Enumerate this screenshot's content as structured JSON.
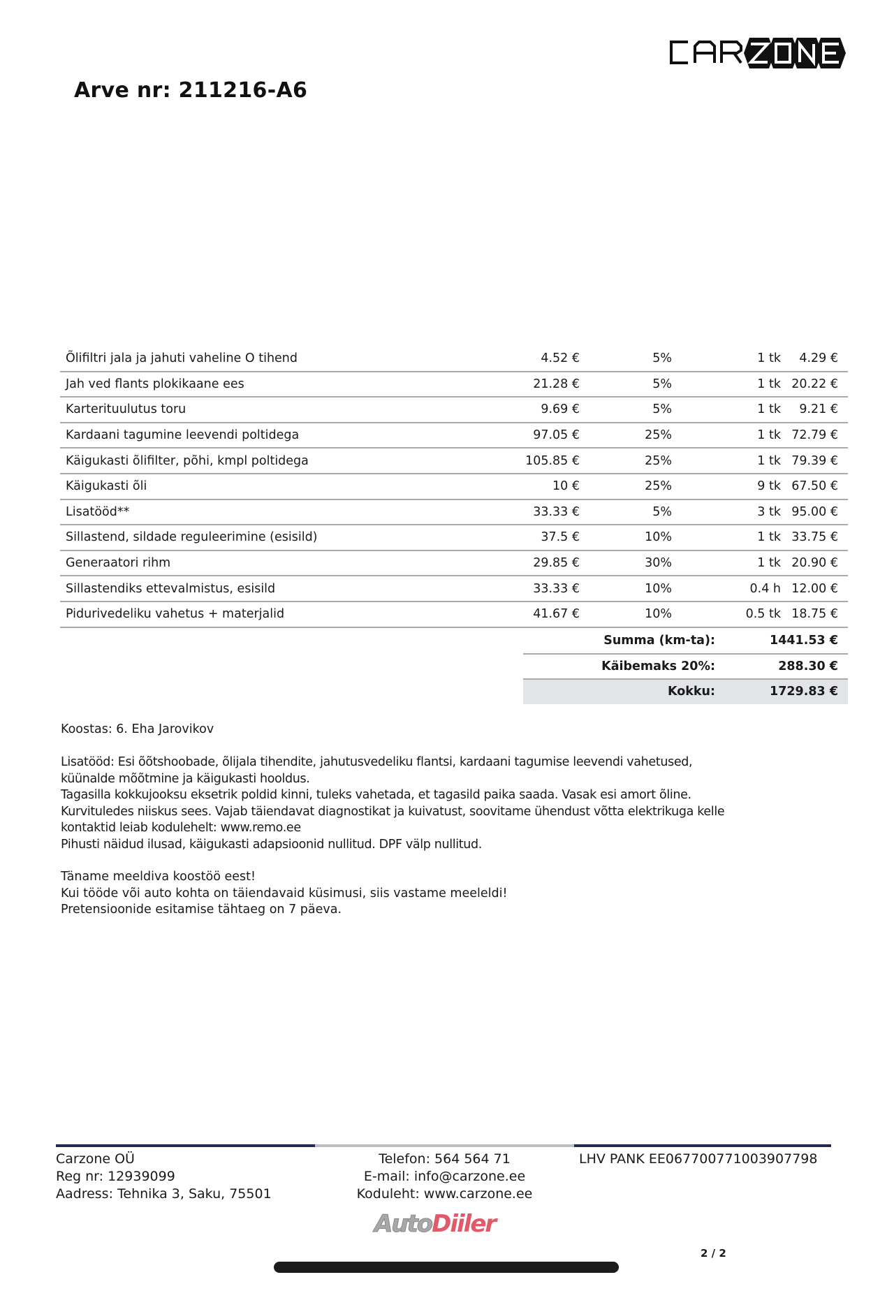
{
  "header": {
    "title": "Arve nr: 211216-A6",
    "logo_text": "CARZONE"
  },
  "items": [
    {
      "name": "Õlifiltri jala ja jahuti vaheline O tihend",
      "price": "4.52 €",
      "discount": "5%",
      "qty": "1 tk",
      "total": "4.29 €"
    },
    {
      "name": "Jah ved flants plokikaane ees",
      "price": "21.28 €",
      "discount": "5%",
      "qty": "1 tk",
      "total": "20.22 €"
    },
    {
      "name": "Karterituulutus toru",
      "price": "9.69 €",
      "discount": "5%",
      "qty": "1 tk",
      "total": "9.21 €"
    },
    {
      "name": "Kardaani tagumine leevendi poltidega",
      "price": "97.05 €",
      "discount": "25%",
      "qty": "1 tk",
      "total": "72.79 €"
    },
    {
      "name": "Käigukasti õlifilter, põhi, kmpl poltidega",
      "price": "105.85 €",
      "discount": "25%",
      "qty": "1 tk",
      "total": "79.39 €"
    },
    {
      "name": "Käigukasti õli",
      "price": "10 €",
      "discount": "25%",
      "qty": "9 tk",
      "total": "67.50 €"
    },
    {
      "name": "Lisatööd**",
      "price": "33.33 €",
      "discount": "5%",
      "qty": "3 tk",
      "total": "95.00 €"
    },
    {
      "name": "Sillastend, sildade reguleerimine (esisild)",
      "price": "37.5 €",
      "discount": "10%",
      "qty": "1 tk",
      "total": "33.75 €"
    },
    {
      "name": "Generaatori rihm",
      "price": "29.85 €",
      "discount": "30%",
      "qty": "1 tk",
      "total": "20.90 €"
    },
    {
      "name": "Sillastendiks ettevalmistus, esisild",
      "price": "33.33 €",
      "discount": "10%",
      "qty": "0.4 h",
      "total": "12.00 €"
    },
    {
      "name": "Pidurivedeliku vahetus + materjalid",
      "price": "41.67 €",
      "discount": "10%",
      "qty": "0.5 tk",
      "total": "18.75 €"
    }
  ],
  "summary": {
    "subtotal_label": "Summa (km-ta):",
    "subtotal": "1441.53 €",
    "vat_label": "Käibemaks 20%:",
    "vat": "288.30 €",
    "total_label": "Kokku:",
    "total": "1729.83 €"
  },
  "koostas": "Koostas: 6. Eha Jarovikov",
  "notes": [
    "Lisatööd: Esi õõtshoobade, õlijala tihendite, jahutusvedeliku flantsi, kardaani tagumise leevendi vahetused,",
    "küünalde mõõtmine ja käigukasti hooldus.",
    "Tagasilla kokkujooksu eksetrik poldid kinni, tuleks vahetada, et tagasild paika saada. Vasak esi amort õline.",
    "Kurvituledes niiskus sees. Vajab täiendavat diagnostikat ja kuivatust, soovitame ühendust võtta elektrikuga kelle",
    "kontaktid leiab kodulehelt: www.remo.ee",
    "Pihusti näidud ilusad, käigukasti adapsioonid nullitud. DPF välp nullitud."
  ],
  "thanks": [
    "Täname meeldiva koostöö eest!",
    "Kui tööde või auto kohta on täiendavaid küsimusi, siis vastame meeleldi!",
    "Pretensioonide esitamise tähtaeg on 7 päeva."
  ],
  "footer": {
    "company": "Carzone OÜ",
    "reg": "Reg nr: 12939099",
    "address": "Aadress: Tehnika 3, Saku, 75501",
    "phone": "Telefon: 564 564 71",
    "email": "E-mail: info@carzone.ee",
    "web": "Koduleht: www.carzone.ee",
    "bank": "LHV PANK EE067700771003907798",
    "accent_color": "#1f2a4d",
    "divider_color": "#bdbdbd"
  },
  "watermark": "AutoDiiler",
  "page_number": "2 / 2"
}
